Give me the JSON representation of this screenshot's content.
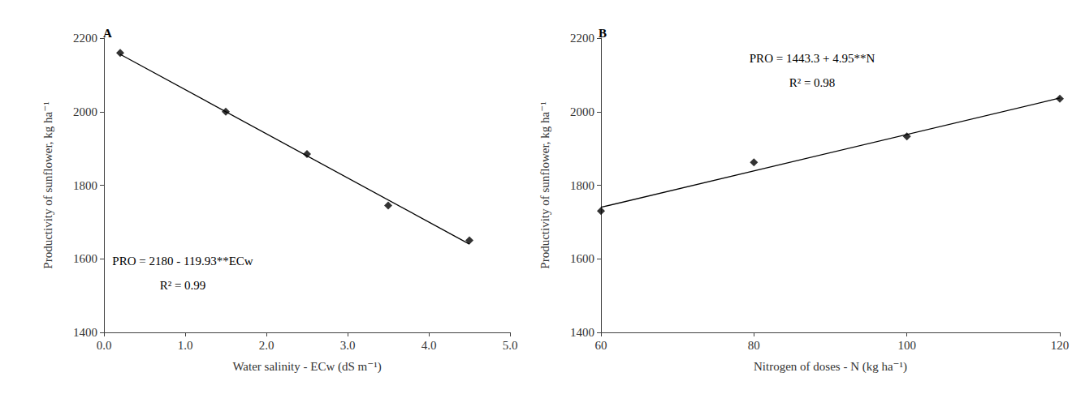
{
  "chart_data": [
    {
      "type": "scatter",
      "title": "A",
      "xlabel": "Water salinity - ECw (dS m⁻¹)",
      "ylabel": "Productivity of sunflower, kg ha⁻¹",
      "xlim": [
        0,
        5
      ],
      "xticks": [
        {
          "value": 0,
          "label": "0.0"
        },
        {
          "value": 1,
          "label": "1.0"
        },
        {
          "value": 2,
          "label": "2.0"
        },
        {
          "value": 3,
          "label": "3.0"
        },
        {
          "value": 4,
          "label": "4.0"
        },
        {
          "value": 5,
          "label": "5.0"
        }
      ],
      "ylim": [
        1400,
        2200
      ],
      "yticks": [
        1400,
        1600,
        1800,
        2000,
        2200
      ],
      "grid": false,
      "annotations": [
        "PRO = 2180 - 119.93**ECw",
        "R² = 0.99"
      ],
      "series": [
        {
          "type": "scatter",
          "marker": "diamond",
          "color": "#000000",
          "x": [
            0.2,
            1.5,
            2.5,
            3.5,
            4.5
          ],
          "values": [
            2160,
            2000,
            1885,
            1745,
            1650
          ]
        },
        {
          "type": "line",
          "line_style": "solid",
          "color": "#000000",
          "x": [
            0.2,
            4.5
          ],
          "values": [
            2156,
            1640
          ]
        }
      ]
    },
    {
      "type": "scatter",
      "title": "B",
      "xlabel": "Nitrogen of doses - N (kg ha⁻¹)",
      "ylabel": "Productivity of sunflower, kg ha⁻¹",
      "xlim": [
        60,
        120
      ],
      "xticks": [
        60,
        80,
        100,
        120
      ],
      "ylim": [
        1400,
        2200
      ],
      "yticks": [
        1400,
        1600,
        1800,
        2000,
        2200
      ],
      "grid": false,
      "annotations": [
        "PRO = 1443.3 + 4.95**N",
        "R² = 0.98"
      ],
      "series": [
        {
          "type": "scatter",
          "marker": "diamond",
          "color": "#000000",
          "x": [
            60,
            80,
            100,
            120
          ],
          "values": [
            1730,
            1862,
            1933,
            2035
          ]
        },
        {
          "type": "line",
          "line_style": "solid",
          "color": "#000000",
          "x": [
            60,
            120
          ],
          "values": [
            1740,
            2037
          ]
        }
      ]
    }
  ]
}
